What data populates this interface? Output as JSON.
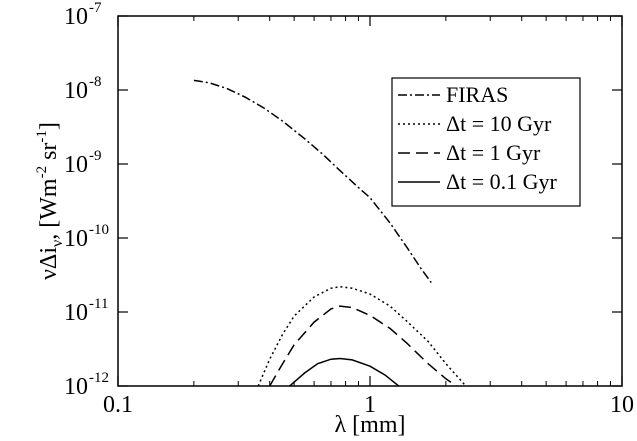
{
  "chart_data": {
    "type": "line",
    "title": "",
    "xlabel": "λ [mm]",
    "ylabel": "νΔi_ν [Wm^-2 sr^-1]",
    "xscale": "log",
    "yscale": "log",
    "xlim": [
      0.1,
      10
    ],
    "ylim": [
      1e-12,
      1e-07
    ],
    "x_ticks": [
      {
        "value": 0.1,
        "label": "0.1"
      },
      {
        "value": 1,
        "label": "1"
      },
      {
        "value": 10,
        "label": "10"
      }
    ],
    "y_ticks": [
      {
        "value": 1e-12,
        "base": "10",
        "exp": "-12"
      },
      {
        "value": 1e-11,
        "base": "10",
        "exp": "-11"
      },
      {
        "value": 1e-10,
        "base": "10",
        "exp": "-10"
      },
      {
        "value": 1e-09,
        "base": "10",
        "exp": "-9"
      },
      {
        "value": 1e-08,
        "base": "10",
        "exp": "-8"
      },
      {
        "value": 1e-07,
        "base": "10",
        "exp": "-7"
      }
    ],
    "grid": false,
    "legend_position": "top-right",
    "series": [
      {
        "name": "FIRAS",
        "style": "dash-dot",
        "points": [
          [
            0.2,
            1.35e-08
          ],
          [
            0.23,
            1.25e-08
          ],
          [
            0.27,
            1.05e-08
          ],
          [
            0.32,
            8e-09
          ],
          [
            0.38,
            5.7e-09
          ],
          [
            0.45,
            3.8e-09
          ],
          [
            0.55,
            2.2e-09
          ],
          [
            0.65,
            1.35e-09
          ],
          [
            0.75,
            8.5e-10
          ],
          [
            0.9,
            4.8e-10
          ],
          [
            1.0,
            3.5e-10
          ],
          [
            1.2,
            1.6e-10
          ],
          [
            1.4,
            7.5e-11
          ],
          [
            1.6,
            3.8e-11
          ],
          [
            1.75,
            2.5e-11
          ]
        ]
      },
      {
        "name": "Δt = 10 Gyr",
        "style": "dotted",
        "points": [
          [
            0.36,
            1e-12
          ],
          [
            0.4,
            2.3e-12
          ],
          [
            0.45,
            5e-12
          ],
          [
            0.5,
            8.8e-12
          ],
          [
            0.6,
            1.6e-11
          ],
          [
            0.7,
            2.1e-11
          ],
          [
            0.76,
            2.2e-11
          ],
          [
            0.85,
            2.1e-11
          ],
          [
            1.0,
            1.75e-11
          ],
          [
            1.2,
            1.2e-11
          ],
          [
            1.4,
            7.5e-12
          ],
          [
            1.7,
            4e-12
          ],
          [
            2.0,
            2e-12
          ],
          [
            2.4,
            1e-12
          ]
        ]
      },
      {
        "name": "Δt = 1 Gyr",
        "style": "dashed",
        "points": [
          [
            0.4,
            1e-12
          ],
          [
            0.45,
            2e-12
          ],
          [
            0.5,
            3.6e-12
          ],
          [
            0.6,
            7.3e-12
          ],
          [
            0.7,
            1.1e-11
          ],
          [
            0.76,
            1.2e-11
          ],
          [
            0.85,
            1.15e-11
          ],
          [
            1.0,
            9e-12
          ],
          [
            1.2,
            6e-12
          ],
          [
            1.4,
            3.8e-12
          ],
          [
            1.7,
            2e-12
          ],
          [
            2.0,
            1.25e-12
          ],
          [
            2.2,
            1e-12
          ]
        ]
      },
      {
        "name": "Δt = 0.1 Gyr",
        "style": "solid",
        "points": [
          [
            0.48,
            1e-12
          ],
          [
            0.55,
            1.5e-12
          ],
          [
            0.62,
            2e-12
          ],
          [
            0.7,
            2.3e-12
          ],
          [
            0.76,
            2.35e-12
          ],
          [
            0.85,
            2.25e-12
          ],
          [
            1.0,
            1.85e-12
          ],
          [
            1.15,
            1.4e-12
          ],
          [
            1.3,
            1e-12
          ]
        ]
      }
    ]
  }
}
